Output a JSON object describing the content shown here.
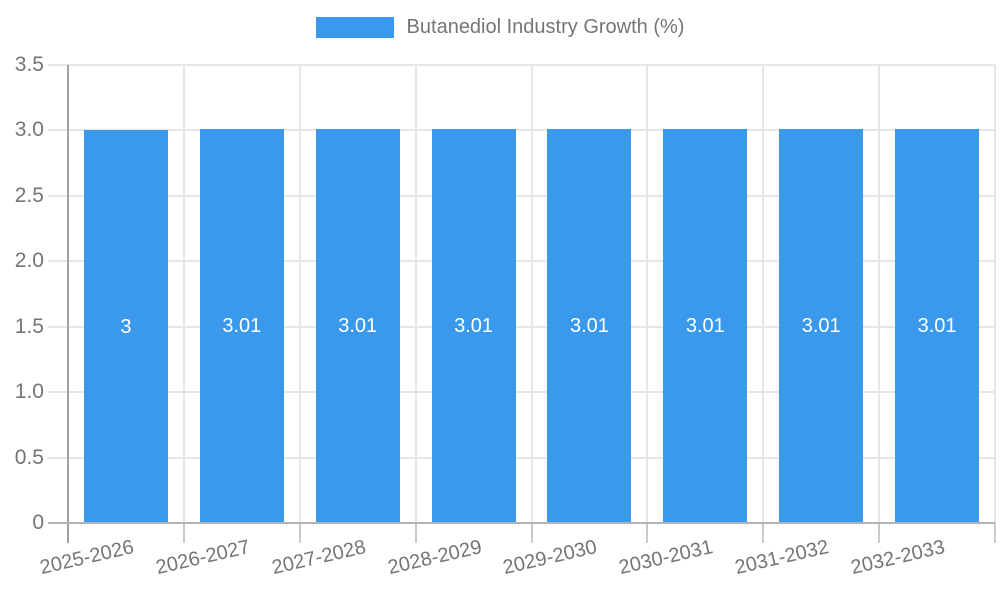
{
  "legend": {
    "label": "Butanediol Industry Growth (%)"
  },
  "chart_data": {
    "type": "bar",
    "title": "Butanediol Industry Growth (%)",
    "categories": [
      "2025-2026",
      "2026-2027",
      "2027-2028",
      "2028-2029",
      "2029-2030",
      "2030-2031",
      "2031-2032",
      "2032-2033"
    ],
    "series": [
      {
        "name": "Butanediol Industry Growth (%)",
        "values": [
          3,
          3.01,
          3.01,
          3.01,
          3.01,
          3.01,
          3.01,
          3.01
        ],
        "display_values": [
          "3",
          "3.01",
          "3.01",
          "3.01",
          "3.01",
          "3.01",
          "3.01",
          "3.01"
        ]
      }
    ],
    "xlabel": "",
    "ylabel": "",
    "ylim": [
      0,
      3.5
    ],
    "ytick_labels": [
      "0",
      "0.5",
      "1.0",
      "1.5",
      "2.0",
      "2.5",
      "3.0",
      "3.5"
    ],
    "grid": true,
    "legend_position": "top",
    "colors": {
      "bar": "#3B99EC",
      "grid": "#E6E6E6",
      "x_axis": "#B3B3B3",
      "y_axis": "#A0A0A0",
      "tick": "#C9C9C9",
      "text": "#757575",
      "bar_label": "#FFFFFF"
    }
  }
}
